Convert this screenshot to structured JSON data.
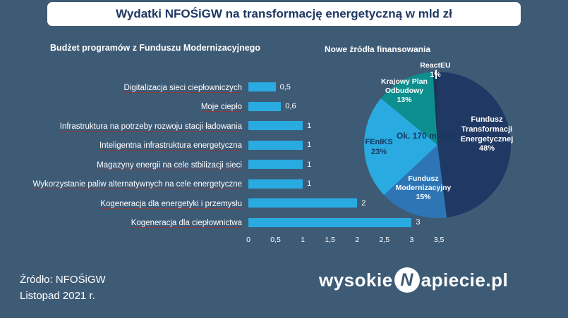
{
  "title": "Wydatki NFOŚiGW na transformację energetyczną w mld zł",
  "source": {
    "line1": "Źródło: NFOŚiGW",
    "line2": "Listopad 2021 r."
  },
  "logo": {
    "prefix": "wysokie",
    "monogram": "N",
    "suffix": "apiecie.pl"
  },
  "colors": {
    "background": "#3E5B76",
    "banner": "#FFFFFF",
    "title_text": "#1F3864",
    "bar": "#29ABE2",
    "label_underline": "#8B3A3A"
  },
  "chart_data": [
    {
      "type": "bar",
      "orientation": "horizontal",
      "title": "Budżet programów z Funduszu Modernizacyjnego",
      "categories": [
        "Digitalizacja sieci ciepłowniczych",
        "Moje ciepło",
        "Infrastruktura na potrzeby rozwoju stacji ładowania",
        "Inteligentna infrastruktura energetyczna",
        "Magazyny energii na cele stbilizacji sieci",
        "Wykorzystanie paliw alternatywnych na cele energetyczne",
        "Kogeneracja dla energetyki i przemysłu",
        "Kogeneracja dla ciepłownictwa"
      ],
      "values": [
        0.5,
        0.6,
        1,
        1,
        1,
        1,
        2,
        3
      ],
      "value_labels": [
        "0,5",
        "0,6",
        "1",
        "1",
        "1",
        "1",
        "2",
        "3"
      ],
      "x_ticks": [
        "0",
        "0,5",
        "1",
        "1,5",
        "2",
        "2,5",
        "3",
        "3,5"
      ],
      "xlim": [
        0,
        3.5
      ],
      "bar_color": "#29ABE2",
      "grid": false
    },
    {
      "type": "pie",
      "title": "Nowe źródła finansowania",
      "center_label": "Ok. 170 mld zł",
      "slices": [
        {
          "label": "Fundusz Transformacji Energetycznej",
          "pct": 48,
          "pct_label": "48%",
          "color": "#1F3864",
          "text_dark": false
        },
        {
          "label": "Fundusz Modernizacyjny",
          "pct": 15,
          "pct_label": "15%",
          "color": "#2E75B6",
          "text_dark": false
        },
        {
          "label": "FEnIKS",
          "pct": 23,
          "pct_label": "23%",
          "color": "#29ABE2",
          "text_dark": true
        },
        {
          "label": "Krajowy Plan Odbudowy",
          "pct": 13,
          "pct_label": "13%",
          "color": "#0E8F8F",
          "text_dark": false
        },
        {
          "label": "ReactEU",
          "pct": 1,
          "pct_label": "1%",
          "color": "#16365C",
          "text_dark": false
        }
      ]
    }
  ]
}
